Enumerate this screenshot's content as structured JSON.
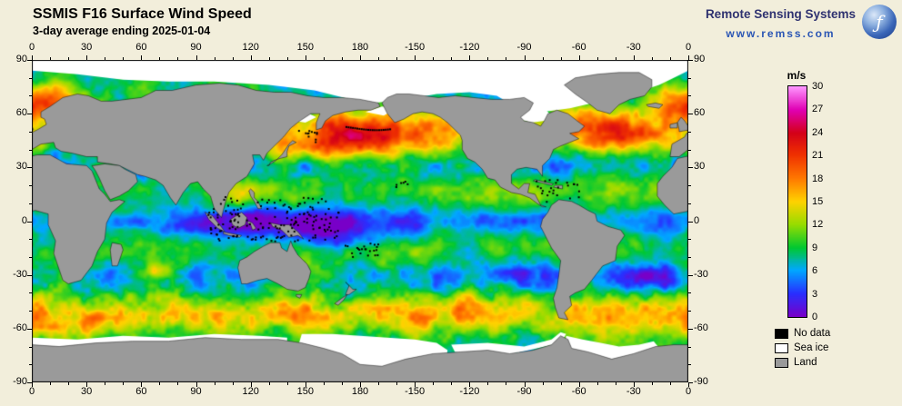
{
  "page": {
    "background_color": "#f2eedb"
  },
  "header": {
    "title": "SSMIS F16 Surface Wind Speed",
    "subtitle": "3-day average ending 2025-01-04"
  },
  "branding": {
    "org_name": "Remote Sensing Systems",
    "website": "www.remss.com",
    "logo_icon": "globe-icon"
  },
  "map_axes": {
    "longitude_labels": [
      "0",
      "30",
      "60",
      "90",
      "120",
      "150",
      "180",
      "-150",
      "-120",
      "-90",
      "-60",
      "-30",
      "0"
    ],
    "latitude_labels": [
      "90",
      "60",
      "30",
      "0",
      "-30",
      "-60",
      "-90"
    ]
  },
  "colorbar": {
    "unit_label": "m/s",
    "min": 0,
    "max": 30,
    "tick_labels": [
      "30",
      "27",
      "24",
      "21",
      "18",
      "15",
      "12",
      "9",
      "6",
      "3",
      "0"
    ],
    "gradient_stops": [
      {
        "value": 0,
        "color": "#7800c8"
      },
      {
        "value": 3,
        "color": "#2830ff"
      },
      {
        "value": 6,
        "color": "#00a8ff"
      },
      {
        "value": 9,
        "color": "#00c832"
      },
      {
        "value": 12,
        "color": "#96dc00"
      },
      {
        "value": 15,
        "color": "#ffd200"
      },
      {
        "value": 18,
        "color": "#ff7800"
      },
      {
        "value": 21,
        "color": "#f03200"
      },
      {
        "value": 24,
        "color": "#d40018"
      },
      {
        "value": 27,
        "color": "#e000b4"
      },
      {
        "value": 30,
        "color": "#ff96ff"
      }
    ]
  },
  "legend": {
    "items": [
      {
        "label": "No data",
        "color": "#000000"
      },
      {
        "label": "Sea ice",
        "color": "#ffffff"
      },
      {
        "label": "Land",
        "color": "#9a9a9a"
      }
    ]
  }
}
